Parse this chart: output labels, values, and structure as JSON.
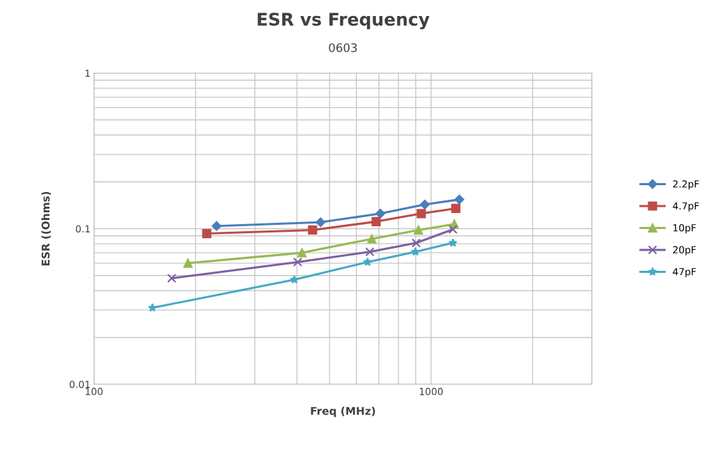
{
  "chart_data": {
    "type": "line",
    "title": "ESR vs Frequency",
    "subtitle": "0603",
    "xlabel": "Freq (MHz)",
    "ylabel": "ESR ((Ohms)",
    "log": "xy",
    "xlim": [
      100,
      3000
    ],
    "xticks": [
      100,
      1000
    ],
    "ylim": [
      0.01,
      1
    ],
    "yticks": [
      0.01,
      0.1,
      1
    ],
    "grid": true,
    "legend": "right",
    "series": [
      {
        "name": "2.2pF",
        "color": "#4a7ebb",
        "marker": "diamond",
        "x": [
          231,
          470,
          707,
          958,
          1213
        ],
        "values": [
          0.104,
          0.11,
          0.125,
          0.143,
          0.154
        ]
      },
      {
        "name": "4.7pF",
        "color": "#be4b48",
        "marker": "square",
        "x": [
          216,
          445,
          687,
          935,
          1184
        ],
        "values": [
          0.093,
          0.098,
          0.111,
          0.125,
          0.135
        ]
      },
      {
        "name": "10pF",
        "color": "#98b954",
        "marker": "triangle",
        "x": [
          190,
          414,
          667,
          917,
          1172
        ],
        "values": [
          0.06,
          0.07,
          0.086,
          0.098,
          0.107
        ]
      },
      {
        "name": "20pF",
        "color": "#7d60a0",
        "marker": "cross",
        "x": [
          170,
          402,
          658,
          903,
          1161
        ],
        "values": [
          0.048,
          0.061,
          0.071,
          0.081,
          0.099
        ]
      },
      {
        "name": "47pF",
        "color": "#46aac5",
        "marker": "star",
        "x": [
          149,
          393,
          648,
          899,
          1161
        ],
        "values": [
          0.031,
          0.047,
          0.061,
          0.071,
          0.081
        ]
      }
    ]
  }
}
